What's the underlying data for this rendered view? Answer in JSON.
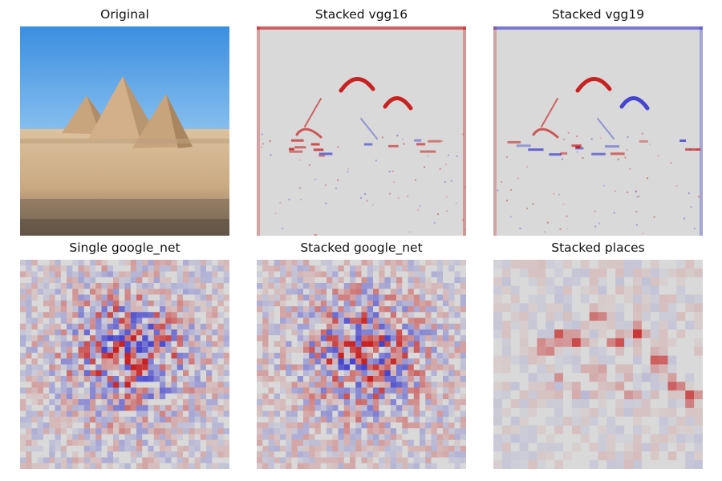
{
  "panels": [
    {
      "title": "Original",
      "kind": "photo"
    },
    {
      "title": "Stacked vgg16",
      "kind": "saliency-sharp",
      "variant": "vgg16"
    },
    {
      "title": "Stacked vgg19",
      "kind": "saliency-sharp",
      "variant": "vgg19"
    },
    {
      "title": "Single google_net",
      "kind": "saliency-noise",
      "variant": "single"
    },
    {
      "title": "Stacked google_net",
      "kind": "saliency-noise",
      "variant": "stacked"
    },
    {
      "title": "Stacked places",
      "kind": "saliency-blocky",
      "variant": "places"
    }
  ],
  "colors": {
    "background": "#d9d9d9",
    "positive": "#c40000",
    "negative": "#2a2acc",
    "sky_top": "#3b8fe0",
    "sky_bottom": "#8cc2ef",
    "sand": "#cdb08a",
    "pyramid": "#c9a57d"
  }
}
